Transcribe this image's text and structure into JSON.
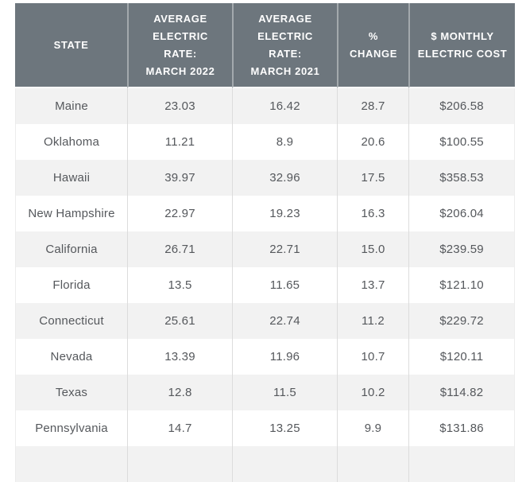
{
  "chart_data": {
    "type": "table",
    "columns": [
      "STATE",
      "AVERAGE ELECTRIC RATE: MARCH 2022",
      "AVERAGE ELECTRIC RATE: MARCH 2021",
      "% CHANGE",
      "$ MONTHLY ELECTRIC COST"
    ],
    "rows": [
      [
        "Maine",
        "23.03",
        "16.42",
        "28.7",
        "$206.58"
      ],
      [
        "Oklahoma",
        "11.21",
        "8.9",
        "20.6",
        "$100.55"
      ],
      [
        "Hawaii",
        "39.97",
        "32.96",
        "17.5",
        "$358.53"
      ],
      [
        "New Hampshire",
        "22.97",
        "19.23",
        "16.3",
        "$206.04"
      ],
      [
        "California",
        "26.71",
        "22.71",
        "15.0",
        "$239.59"
      ],
      [
        "Florida",
        "13.5",
        "11.65",
        "13.7",
        "$121.10"
      ],
      [
        "Connecticut",
        "25.61",
        "22.74",
        "11.2",
        "$229.72"
      ],
      [
        "Nevada",
        "13.39",
        "11.96",
        "10.7",
        "$120.11"
      ],
      [
        "Texas",
        "12.8",
        "11.5",
        "10.2",
        "$114.82"
      ],
      [
        "Pennsylvania",
        "14.7",
        "13.25",
        "9.9",
        "$131.86"
      ]
    ]
  },
  "header_display": [
    "STATE",
    "AVERAGE\nELECTRIC\nRATE:\nMARCH 2022",
    "AVERAGE\nELECTRIC\nRATE:\nMARCH 2021",
    "%\nCHANGE",
    "$ MONTHLY\nELECTRIC COST"
  ],
  "colors": {
    "header_bg": "#6d767d",
    "header_text": "#ffffff",
    "header_divider": "#a3a9ad",
    "row_alt_bg": "#f2f2f2",
    "row_bg": "#ffffff",
    "body_text": "#55585c",
    "body_divider": "#dcdcdc"
  }
}
